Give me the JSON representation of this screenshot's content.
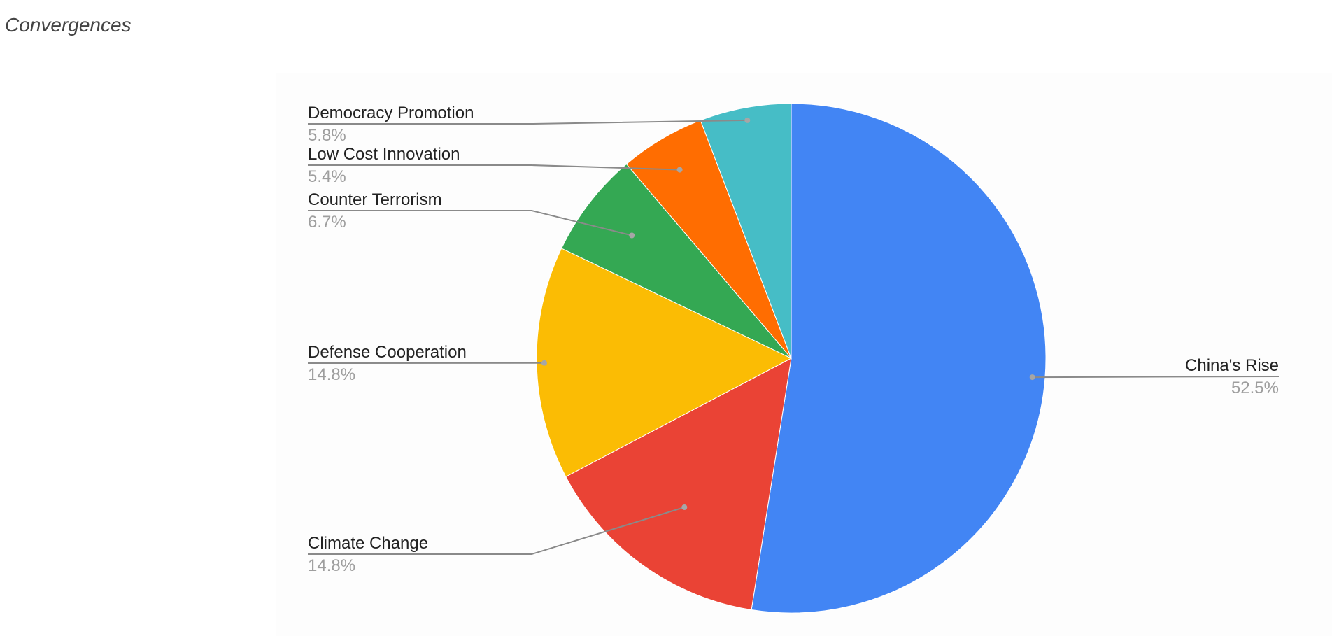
{
  "page": {
    "title": "Convergences"
  },
  "chart_data": {
    "type": "pie",
    "title": "",
    "start_angle_deg": 0,
    "direction": "clockwise",
    "slices": [
      {
        "label": "China's Rise",
        "value": 52.5,
        "value_label": "52.5%",
        "color": "#4285F4"
      },
      {
        "label": "Climate Change",
        "value": 14.8,
        "value_label": "14.8%",
        "color": "#EA4335"
      },
      {
        "label": "Defense Cooperation",
        "value": 14.8,
        "value_label": "14.8%",
        "color": "#FBBC04"
      },
      {
        "label": "Counter Terrorism",
        "value": 6.7,
        "value_label": "6.7%",
        "color": "#34A853"
      },
      {
        "label": "Low Cost Innovation",
        "value": 5.4,
        "value_label": "5.4%",
        "color": "#FF6D01"
      },
      {
        "label": "Democracy Promotion",
        "value": 5.8,
        "value_label": "5.8%",
        "color": "#46BDC6"
      }
    ],
    "legend": "none",
    "labels": "outside-with-leader-lines"
  }
}
